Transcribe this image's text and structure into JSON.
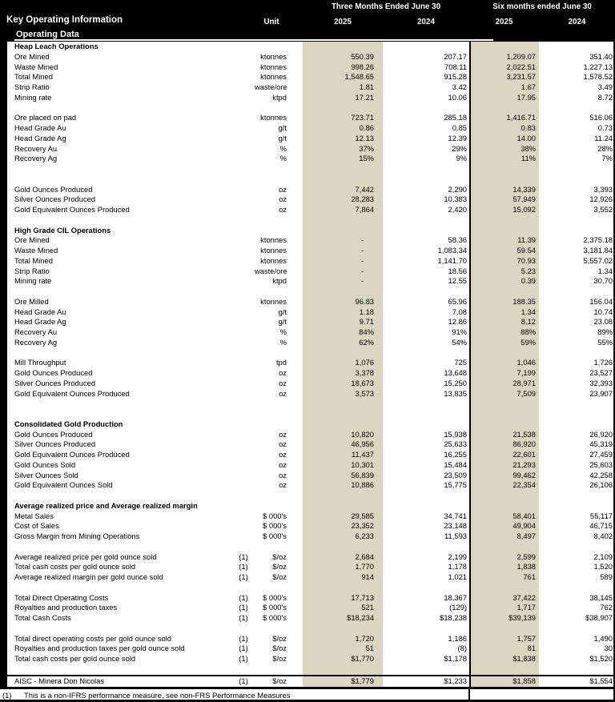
{
  "header": {
    "title": "Key Operating Information",
    "subtitle": "Operating Data",
    "unit_label": "Unit",
    "period_groups": [
      {
        "label": "Three Months Ended June 30",
        "years": [
          "2025",
          "2024"
        ]
      },
      {
        "label": "Six months ended June 30",
        "years": [
          "2025",
          "2024"
        ]
      }
    ]
  },
  "colors": {
    "header_bg": "#000000",
    "header_text": "#ffffff",
    "highlight": "#dcd5c2"
  },
  "table": {
    "rows": [
      {
        "type": "section",
        "label": "Heap Leach Operations"
      },
      {
        "type": "data",
        "label": "Ore Mined",
        "unit": "ktonnes",
        "v": [
          "550.39",
          "207.17",
          "1,209.07",
          "351.40"
        ]
      },
      {
        "type": "data",
        "label": "Waste Mined",
        "unit": "ktonnes",
        "v": [
          "998.26",
          "708.11",
          "2,022.51",
          "1,227.13"
        ]
      },
      {
        "type": "data",
        "label": "Total Mined",
        "unit": "ktonnes",
        "v": [
          "1,548.65",
          "915.28",
          "3,231.57",
          "1,578.52"
        ]
      },
      {
        "type": "data",
        "label": "Strip Ratio",
        "unit": "waste/ore",
        "v": [
          "1.81",
          "3.42",
          "1.67",
          "3.49"
        ]
      },
      {
        "type": "data",
        "label": "Mining rate",
        "unit": "ktpd",
        "v": [
          "17.21",
          "10.06",
          "17.95",
          "8.72"
        ]
      },
      {
        "type": "blank"
      },
      {
        "type": "data",
        "label": "Ore placed on pad",
        "unit": "ktonnes",
        "v": [
          "723.71",
          "285.18",
          "1,416.71",
          "516.06"
        ]
      },
      {
        "type": "data",
        "label": "Head Grade Au",
        "unit": "g/t",
        "v": [
          "0.86",
          "0.85",
          "0.83",
          "0.73"
        ]
      },
      {
        "type": "data",
        "label": "Head Grade Ag",
        "unit": "g/t",
        "v": [
          "12.13",
          "12.39",
          "14.00",
          "11.24"
        ]
      },
      {
        "type": "data",
        "label": "Recovery Au",
        "unit": "%",
        "v": [
          "37%",
          "29%",
          "38%",
          "28%"
        ]
      },
      {
        "type": "data",
        "label": "Recovery Ag",
        "unit": "%",
        "v": [
          "15%",
          "9%",
          "11%",
          "7%"
        ]
      },
      {
        "type": "blank"
      },
      {
        "type": "blank"
      },
      {
        "type": "data",
        "label": "Gold Ounces Produced",
        "unit": "oz",
        "v": [
          "7,442",
          "2,290",
          "14,339",
          "3,393"
        ]
      },
      {
        "type": "data",
        "label": "Silver Ounces Produced",
        "unit": "oz",
        "v": [
          "28,283",
          "10,383",
          "57,949",
          "12,926"
        ]
      },
      {
        "type": "data",
        "label": "Gold Equivalent Ounces Produced",
        "unit": "oz",
        "v": [
          "7,864",
          "2,420",
          "15,092",
          "3,552"
        ]
      },
      {
        "type": "blank"
      },
      {
        "type": "section",
        "label": "High Grade CIL Operations"
      },
      {
        "type": "data",
        "label": "Ore Mined",
        "unit": "ktonnes",
        "v": [
          "-",
          "58.36",
          "11.39",
          "2,375.18"
        ]
      },
      {
        "type": "data",
        "label": "Waste Mined",
        "unit": "ktonnes",
        "v": [
          "-",
          "1,083.34",
          "59.54",
          "3,181.84"
        ]
      },
      {
        "type": "data",
        "label": "Total Mined",
        "unit": "ktonnes",
        "v": [
          "-",
          "1,141.70",
          "70.93",
          "5,557.02"
        ]
      },
      {
        "type": "data",
        "label": "Strip Ratio",
        "unit": "waste/ore",
        "v": [
          "-",
          "18.56",
          "5.23",
          "1.34"
        ]
      },
      {
        "type": "data",
        "label": "Mining rate",
        "unit": "ktpd",
        "v": [
          "-",
          "12.55",
          "0.39",
          "30.70"
        ]
      },
      {
        "type": "blank"
      },
      {
        "type": "data",
        "label": "Ore Milled",
        "unit": "ktonnes",
        "v": [
          "96.83",
          "65.96",
          "188.35",
          "156.04"
        ]
      },
      {
        "type": "data",
        "label": "Head Grade Au",
        "unit": "g/t",
        "v": [
          "1.18",
          "7.08",
          "1.34",
          "10.74"
        ]
      },
      {
        "type": "data",
        "label": "Head Grade Ag",
        "unit": "g/t",
        "v": [
          "9.71",
          "12.86",
          "8.12",
          "23.08"
        ]
      },
      {
        "type": "data",
        "label": "Recovery Au",
        "unit": "%",
        "v": [
          "84%",
          "91%",
          "88%",
          "89%"
        ]
      },
      {
        "type": "data",
        "label": "Recovery Ag",
        "unit": "%",
        "v": [
          "62%",
          "54%",
          "59%",
          "55%"
        ]
      },
      {
        "type": "blank"
      },
      {
        "type": "data",
        "label": "Mill Throughput",
        "unit": "tpd",
        "v": [
          "1,076",
          "725",
          "1,046",
          "1,726"
        ]
      },
      {
        "type": "data",
        "label": "Gold Ounces Produced",
        "unit": "oz",
        "v": [
          "3,378",
          "13,648",
          "7,199",
          "23,527"
        ]
      },
      {
        "type": "data",
        "label": "Silver Ounces Produced",
        "unit": "oz",
        "v": [
          "18,673",
          "15,250",
          "28,971",
          "32,393"
        ]
      },
      {
        "type": "data",
        "label": "Gold Equivalent Ounces Produced",
        "unit": "oz",
        "v": [
          "3,573",
          "13,835",
          "7,509",
          "23,907"
        ]
      },
      {
        "type": "blank"
      },
      {
        "type": "blank"
      },
      {
        "type": "section",
        "label": "Consolidated Gold Production"
      },
      {
        "type": "data",
        "label": "Gold Ounces Produced",
        "unit": "oz",
        "v": [
          "10,820",
          "15,938",
          "21,538",
          "26,920"
        ]
      },
      {
        "type": "data",
        "label": "Silver Ounces Produced",
        "unit": "oz",
        "v": [
          "46,956",
          "25,633",
          "86,920",
          "45,319"
        ]
      },
      {
        "type": "data",
        "label": "Gold Equivalent Ounces Produced",
        "unit": "oz",
        "v": [
          "11,437",
          "16,255",
          "22,601",
          "27,459"
        ]
      },
      {
        "type": "data",
        "label": "Gold Ounces Sold",
        "unit": "oz",
        "v": [
          "10,301",
          "15,484",
          "21,293",
          "25,603"
        ]
      },
      {
        "type": "data",
        "label": "Silver Ounces Sold",
        "unit": "oz",
        "v": [
          "56,839",
          "23,509",
          "99,462",
          "42,258"
        ]
      },
      {
        "type": "data",
        "label": "Gold Equivalent Ounces Sold",
        "unit": "oz",
        "v": [
          "10,886",
          "15,775",
          "22,354",
          "26,106"
        ]
      },
      {
        "type": "blank"
      },
      {
        "type": "section",
        "label": "Average realized price and Average realized margin"
      },
      {
        "type": "data",
        "label": "Metal Sales",
        "unit": "$ 000's",
        "v": [
          "29,585",
          "34,741",
          "58,401",
          "55,117"
        ]
      },
      {
        "type": "data",
        "label": "Cost of Sales",
        "unit": "$ 000's",
        "v": [
          "23,352",
          "23,148",
          "49,904",
          "46,715"
        ]
      },
      {
        "type": "data",
        "label": "Gross Margin from Mining Operations",
        "unit": "$ 000's",
        "v": [
          "6,233",
          "11,593",
          "8,497",
          "8,402"
        ]
      },
      {
        "type": "blank"
      },
      {
        "type": "data",
        "label": "Average realized price per gold ounce sold",
        "fn": "(1)",
        "unit": "$/oz",
        "v": [
          "2,684",
          "2,199",
          "2,599",
          "2,109"
        ]
      },
      {
        "type": "data",
        "label": "Total cash costs per gold ounce sold",
        "fn": "(1)",
        "unit": "$/oz",
        "v": [
          "1,770",
          "1,178",
          "1,838",
          "1,520"
        ]
      },
      {
        "type": "data",
        "label": "Average realized margin per gold ounce sold",
        "fn": "(1)",
        "unit": "$/oz",
        "v": [
          "914",
          "1,021",
          "761",
          "589"
        ]
      },
      {
        "type": "blank"
      },
      {
        "type": "data",
        "label": "Total Direct Operating Costs",
        "fn": "(1)",
        "unit": "$ 000's",
        "v": [
          "17,713",
          "18,367",
          "37,422",
          "38,145"
        ]
      },
      {
        "type": "data",
        "label": "Royalties and production taxes",
        "fn": "(1)",
        "unit": "$ 000's",
        "v": [
          "521",
          "(129)",
          "1,717",
          "762"
        ]
      },
      {
        "type": "data",
        "label": "Total Cash Costs",
        "fn": "(1)",
        "unit": "$ 000's",
        "v": [
          "$18,234",
          "$18,238",
          "$39,139",
          "$38,907"
        ]
      },
      {
        "type": "blank"
      },
      {
        "type": "data",
        "label": "Total direct operating costs per gold ounce sold",
        "fn": "(1)",
        "unit": "$/oz",
        "v": [
          "1,720",
          "1,186",
          "1,757",
          "1,490"
        ]
      },
      {
        "type": "data",
        "label": "Royalties and production taxes per gold ounce sold",
        "fn": "(1)",
        "unit": "$/oz",
        "v": [
          "51",
          "(8)",
          "81",
          "30"
        ]
      },
      {
        "type": "data",
        "label": "Total cash costs per gold ounce sold",
        "fn": "(1)",
        "unit": "$/oz",
        "v": [
          "$1,770",
          "$1,178",
          "$1,838",
          "$1,520"
        ]
      },
      {
        "type": "blank"
      },
      {
        "type": "data",
        "style": "aisc",
        "label": "AISC - Minera Don Nicolas",
        "fn": "(1)",
        "unit": "$/oz",
        "v": [
          "$1,779",
          "$1,233",
          "$1,858",
          "$1,554"
        ]
      }
    ]
  },
  "footnote": {
    "marker": "(1)",
    "text": "This is a non-IFRS performance measure, see non-FRS Performance Measures"
  }
}
